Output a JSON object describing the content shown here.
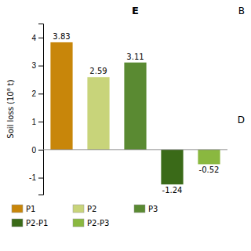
{
  "chart_data": {
    "type": "bar",
    "title": "E",
    "ylabel": "Soil loss (10⁸ t)",
    "categories": [
      "P1",
      "P2",
      "P3",
      "P2-P1",
      "P2-P3"
    ],
    "values": [
      3.83,
      2.59,
      3.11,
      -1.24,
      -0.52
    ],
    "colors": [
      "#c8860a",
      "#c8d47a",
      "#5a8a32",
      "#3a6a18",
      "#8ab840"
    ],
    "ylim": [
      -1.6,
      4.5
    ],
    "yticks": [
      -1,
      0,
      1,
      2,
      3,
      4
    ],
    "grid": false,
    "legend": "bottom",
    "data_labels": true,
    "tick_labels": "y",
    "annotations": [
      "B",
      "D"
    ]
  }
}
